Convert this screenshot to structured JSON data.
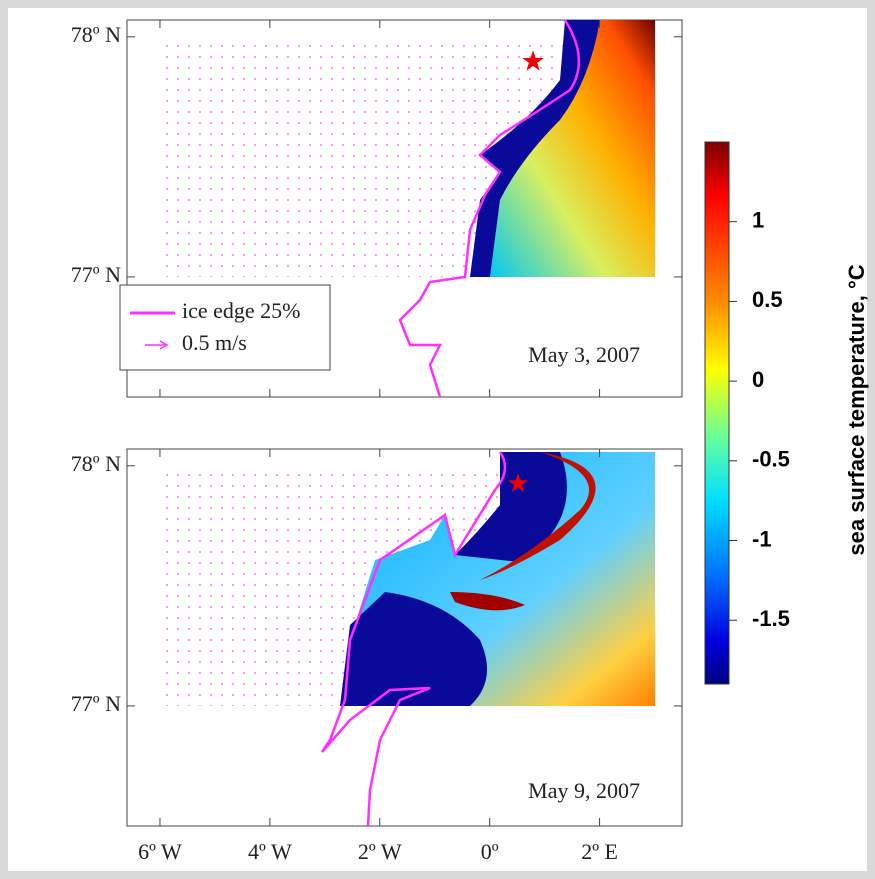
{
  "panels": [
    {
      "date": "May 3, 2007"
    },
    {
      "date": "May 9, 2007"
    }
  ],
  "legend": {
    "ice_edge": "ice edge 25%",
    "velocity": "0.5 m/s"
  },
  "axes": {
    "xlim": [
      -6.6,
      3.5
    ],
    "xticks": [
      {
        "value": -6,
        "label": "6º W"
      },
      {
        "value": -4,
        "label": "4º W"
      },
      {
        "value": -2,
        "label": "2º W"
      },
      {
        "value": 0,
        "label": "0º"
      },
      {
        "value": 2,
        "label": "2º E"
      }
    ],
    "ylim": [
      76.5,
      78.07
    ],
    "yticks": [
      {
        "value": 78,
        "label": "78º N"
      },
      {
        "value": 77,
        "label": "77º N"
      }
    ]
  },
  "colorbar": {
    "label": "sea surface temperature, °C",
    "lim": [
      -1.9,
      1.5
    ],
    "ticks": [
      1,
      0.5,
      0,
      -0.5,
      -1,
      -1.5
    ]
  }
}
